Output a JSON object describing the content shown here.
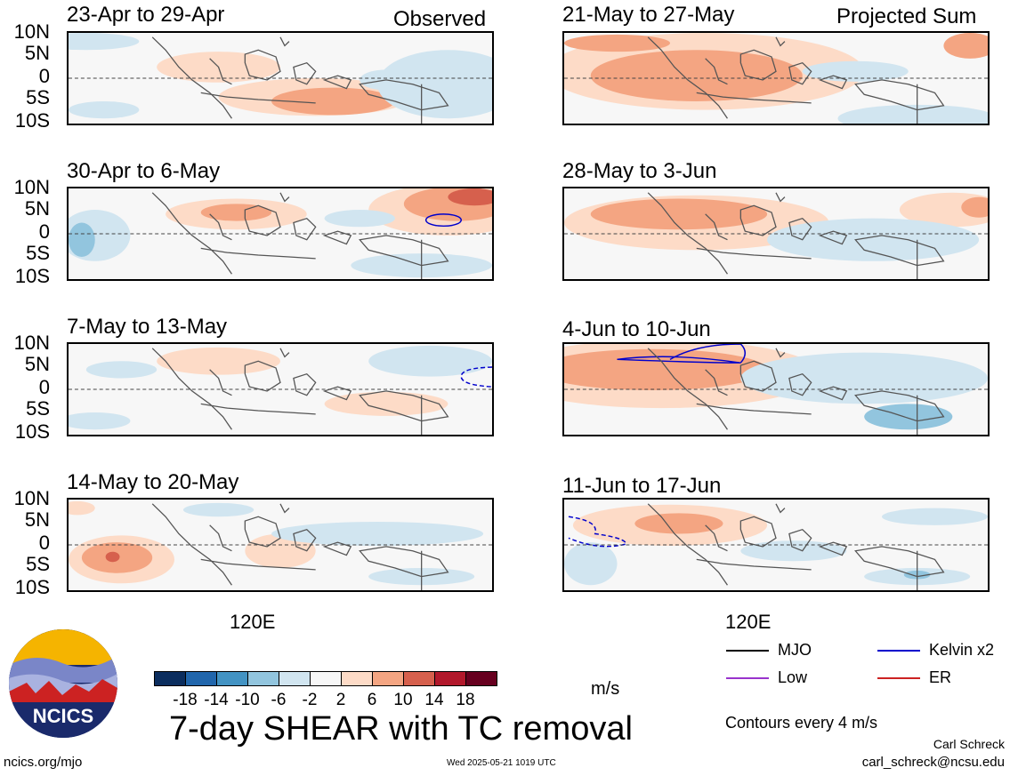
{
  "headers": {
    "left": "Observed",
    "right": "Projected Sum"
  },
  "panels": {
    "p1": {
      "title": "23-Apr to 29-Apr"
    },
    "p2": {
      "title": "30-Apr to 6-May"
    },
    "p3": {
      "title": "7-May to 13-May"
    },
    "p4": {
      "title": "14-May to 20-May"
    },
    "p5": {
      "title": "21-May to 27-May"
    },
    "p6": {
      "title": "28-May to 3-Jun"
    },
    "p7": {
      "title": "4-Jun to 10-Jun"
    },
    "p8": {
      "title": "11-Jun to 17-Jun"
    }
  },
  "yaxis": {
    "n10": "10N",
    "n5": "5N",
    "eq": "0",
    "s5": "5S",
    "s10": "10S"
  },
  "xaxis": {
    "label": "120E"
  },
  "legend": {
    "mjo": "MJO",
    "kelvin": "Kelvin x2",
    "low": "Low",
    "er": "ER",
    "colors": {
      "mjo": "#000000",
      "kelvin": "#0000cc",
      "low": "#9933cc",
      "er": "#cc2222"
    }
  },
  "colorbar": {
    "ticks": [
      "-18",
      "-14",
      "-10",
      "-6",
      "-2",
      "2",
      "6",
      "10",
      "14",
      "18"
    ],
    "colors": [
      "#0b2d5e",
      "#2166ac",
      "#4393c3",
      "#92c5de",
      "#d1e5f0",
      "#f7f7f7",
      "#fddbc7",
      "#f4a582",
      "#d6604d",
      "#b2182b",
      "#67001f"
    ],
    "units": "m/s"
  },
  "title": "7-day SHEAR with TC removal",
  "contours_note": "Contours every 4 m/s",
  "footer": {
    "url": "ncics.org/mjo",
    "timestamp": "Wed 2025-05-21 1019 UTC",
    "author": "Carl Schreck",
    "email": "carl_schreck@ncsu.edu"
  },
  "logo_text": "NCICS"
}
